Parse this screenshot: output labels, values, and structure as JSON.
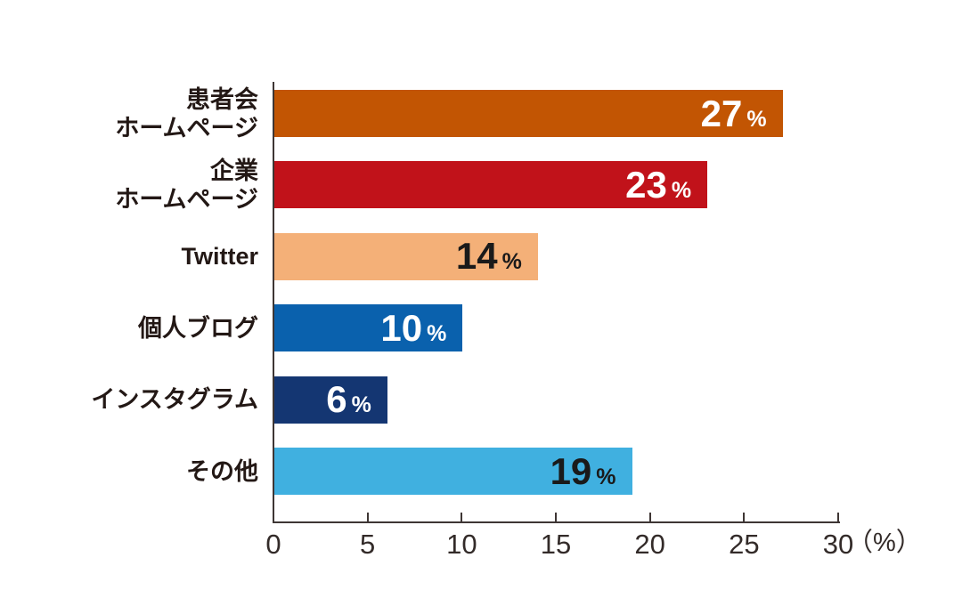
{
  "chart_data": {
    "type": "bar",
    "orientation": "horizontal",
    "title": "",
    "categories": [
      [
        "患者会",
        "ホームページ"
      ],
      [
        "企業",
        "ホームページ"
      ],
      [
        "Twitter"
      ],
      [
        "個人ブログ"
      ],
      [
        "インスタグラム"
      ],
      [
        "その他"
      ]
    ],
    "values": [
      27,
      23,
      14,
      10,
      6,
      19
    ],
    "value_suffix": "%",
    "xlabel": "",
    "ylabel": "",
    "xlim": [
      0,
      30
    ],
    "x_ticks": [
      0,
      5,
      10,
      15,
      20,
      25,
      30
    ],
    "x_axis_unit": "（%）",
    "grid": false,
    "legend": "none",
    "bar_colors": [
      "#c25503",
      "#c1121a",
      "#f4b078",
      "#0a61ad",
      "#143672",
      "#40b0e0"
    ],
    "value_label_colors": [
      "#ffffff",
      "#ffffff",
      "#1a1a1a",
      "#ffffff",
      "#ffffff",
      "#1a1a1a"
    ],
    "axis_color": "#3e3634",
    "tick_label_color": "#332b29",
    "category_label_color": "#231815"
  }
}
